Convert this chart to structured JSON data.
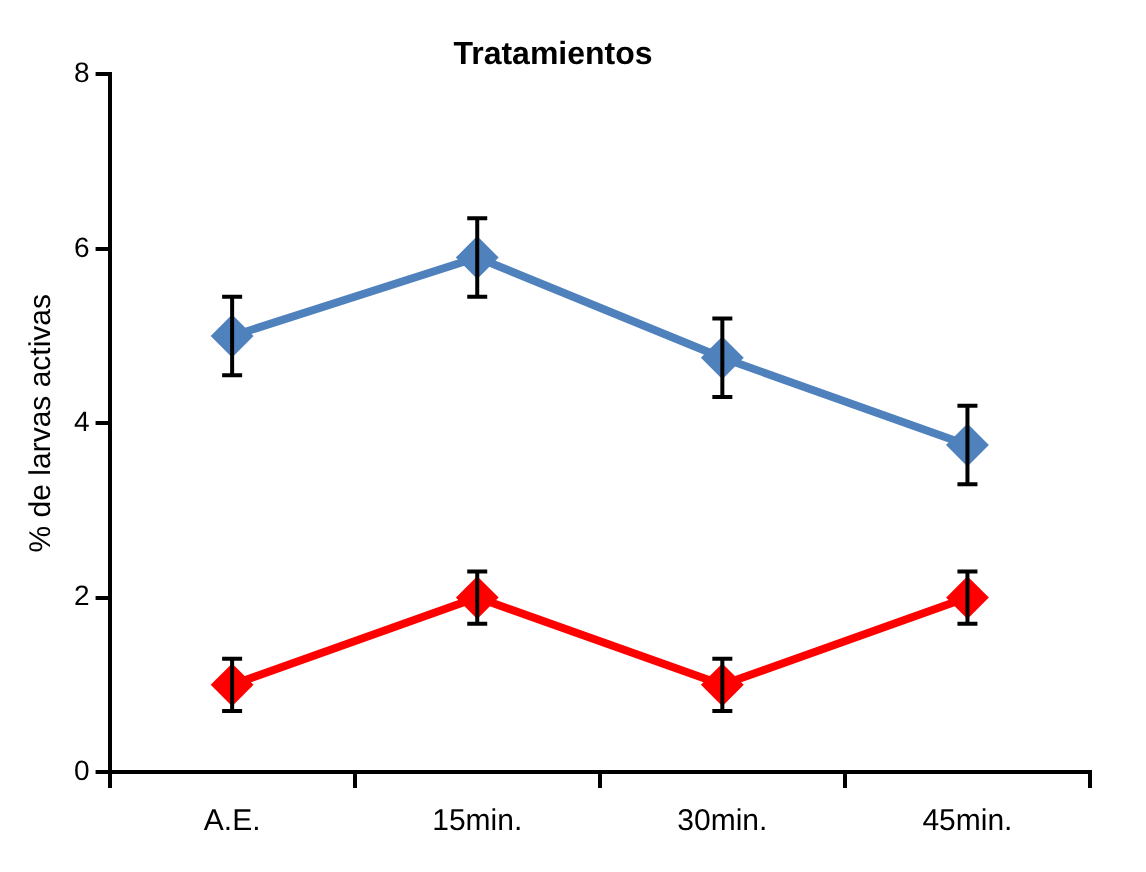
{
  "chart_data": {
    "type": "line",
    "title": "Tratamientos",
    "ylabel": "% de larvas activas",
    "categories": [
      "A.E.",
      "15min.",
      "30min.",
      "45min."
    ],
    "series": [
      {
        "color": "#4f81bd",
        "values": [
          5.0,
          5.9,
          4.75,
          3.75
        ],
        "errors": [
          0.45,
          0.45,
          0.45,
          0.45
        ]
      },
      {
        "color": "#ff0000",
        "values": [
          1,
          2,
          1,
          2
        ],
        "errors": [
          0.3,
          0.3,
          0.3,
          0.3
        ]
      }
    ],
    "ylim": [
      0,
      8
    ],
    "yticks": [
      0,
      2,
      4,
      6,
      8
    ],
    "grid": false,
    "legend": false,
    "marker": "diamond",
    "line_style": "solid"
  }
}
